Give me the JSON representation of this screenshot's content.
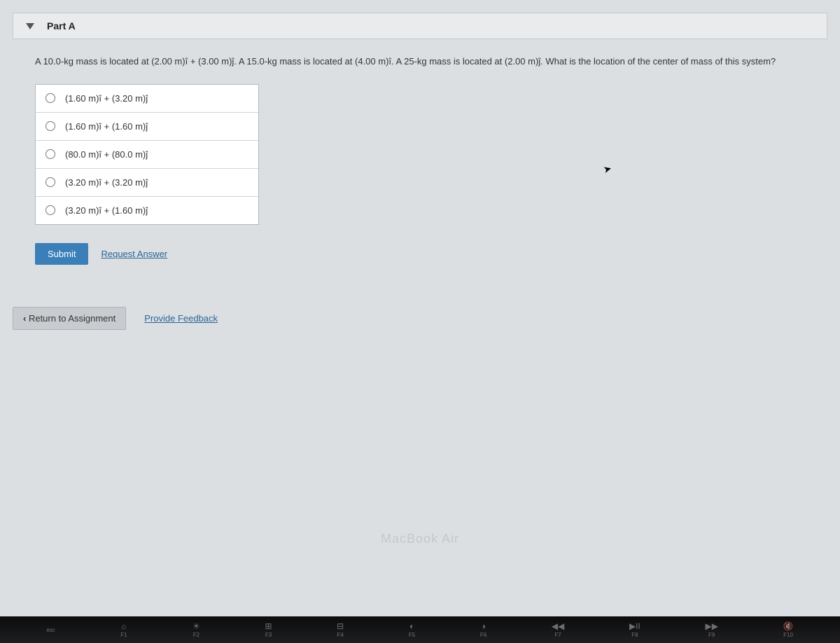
{
  "part": {
    "title": "Part A",
    "question": "A 10.0-kg mass is located at (2.00 m)î + (3.00 m)ĵ. A 15.0-kg mass is located at (4.00 m)î. A 25-kg mass is located at (2.00 m)ĵ. What is the location of the center of mass of this system?",
    "options": [
      "(1.60 m)î + (3.20 m)ĵ",
      "(1.60 m)î + (1.60 m)ĵ",
      "(80.0 m)î + (80.0 m)ĵ",
      "(3.20 m)î + (3.20 m)ĵ",
      "(3.20 m)î + (1.60 m)ĵ"
    ],
    "submit_label": "Submit",
    "request_label": "Request Answer"
  },
  "footer": {
    "return_label": "Return to Assignment",
    "feedback_label": "Provide Feedback"
  },
  "laptop": {
    "brand": "MacBook Air",
    "esc": "esc",
    "keys": [
      {
        "icon": "☼",
        "label": "F1"
      },
      {
        "icon": "☀",
        "label": "F2"
      },
      {
        "icon": "⊞",
        "label": "F3"
      },
      {
        "icon": "⊟",
        "label": "F4"
      },
      {
        "icon": "◐",
        "label": "F5"
      },
      {
        "icon": "◑",
        "label": "F6"
      },
      {
        "icon": "◀◀",
        "label": "F7"
      },
      {
        "icon": "▶II",
        "label": "F8"
      },
      {
        "icon": "▶▶",
        "label": "F9"
      },
      {
        "icon": "🔇",
        "label": "F10"
      }
    ]
  },
  "colors": {
    "page_bg": "#dcdfe2",
    "header_bg": "#eaebed",
    "border": "#c4c8cc",
    "option_bg": "#ffffff",
    "submit_bg": "#3a7fb8",
    "link": "#2a6496"
  }
}
